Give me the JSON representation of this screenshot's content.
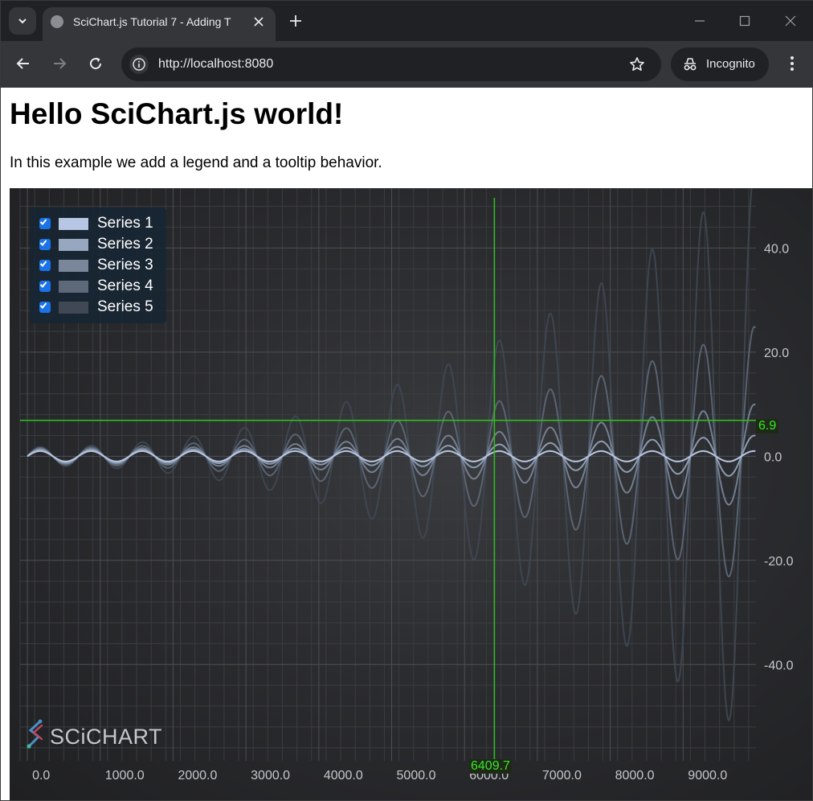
{
  "browser": {
    "tab_title": "SciChart.js Tutorial 7 - Adding T",
    "url": "http://localhost:8080",
    "profile_label": "Incognito"
  },
  "page": {
    "heading": "Hello SciChart.js world!",
    "intro": "In this example we add a legend and a tooltip behavior."
  },
  "colors": {
    "background": "#2b2c2f",
    "cursor": "#2fbd1f",
    "cursor_label_text": "#37e62a",
    "axis_label": "#c5c7ca"
  },
  "legend": {
    "items": [
      {
        "label": "Series 1",
        "checked": true,
        "color": "#b7c6e2"
      },
      {
        "label": "Series 2",
        "checked": true,
        "color": "#97a7bf"
      },
      {
        "label": "Series 3",
        "checked": true,
        "color": "#7a879b"
      },
      {
        "label": "Series 4",
        "checked": true,
        "color": "#5d6878"
      },
      {
        "label": "Series 5",
        "checked": true,
        "color": "#3f4854"
      }
    ]
  },
  "cursor": {
    "x_label": "6409.7",
    "y_label": "6.9",
    "x": 6409.7,
    "y": 6.9
  },
  "watermark": "SCiCHART",
  "chart_data": {
    "type": "line",
    "x_range": [
      -100,
      10000
    ],
    "y_range": [
      -58.5,
      51.5
    ],
    "x_ticks": [
      0,
      1000,
      2000,
      3000,
      4000,
      5000,
      6000,
      7000,
      8000,
      9000
    ],
    "x_tick_labels": [
      "0.0",
      "1000.0",
      "2000.0",
      "3000.0",
      "4000.0",
      "5000.0",
      "6000.0",
      "7000.0",
      "8000.0",
      "9000.0"
    ],
    "y_ticks": [
      40,
      20,
      0,
      -20,
      -40
    ],
    "y_tick_labels": [
      "40.0",
      "20.0",
      "0.0",
      "-20.0",
      "-40.0"
    ],
    "y_axis_position": "right",
    "grid": true,
    "legend_position": "top-left",
    "series": [
      {
        "name": "Series 1",
        "amplitude_start": 1.0,
        "amplitude_end": 1.0,
        "period": 700
      },
      {
        "name": "Series 2",
        "amplitude_start": 1.2,
        "amplitude_end": 4.0,
        "period": 700
      },
      {
        "name": "Series 3",
        "amplitude_start": 1.4,
        "amplitude_end": 10.0,
        "period": 700
      },
      {
        "name": "Series 4",
        "amplitude_start": 1.6,
        "amplitude_end": 25.0,
        "period": 700
      },
      {
        "name": "Series 5",
        "amplitude_start": 1.8,
        "amplitude_end": 55.0,
        "period": 700
      }
    ]
  }
}
